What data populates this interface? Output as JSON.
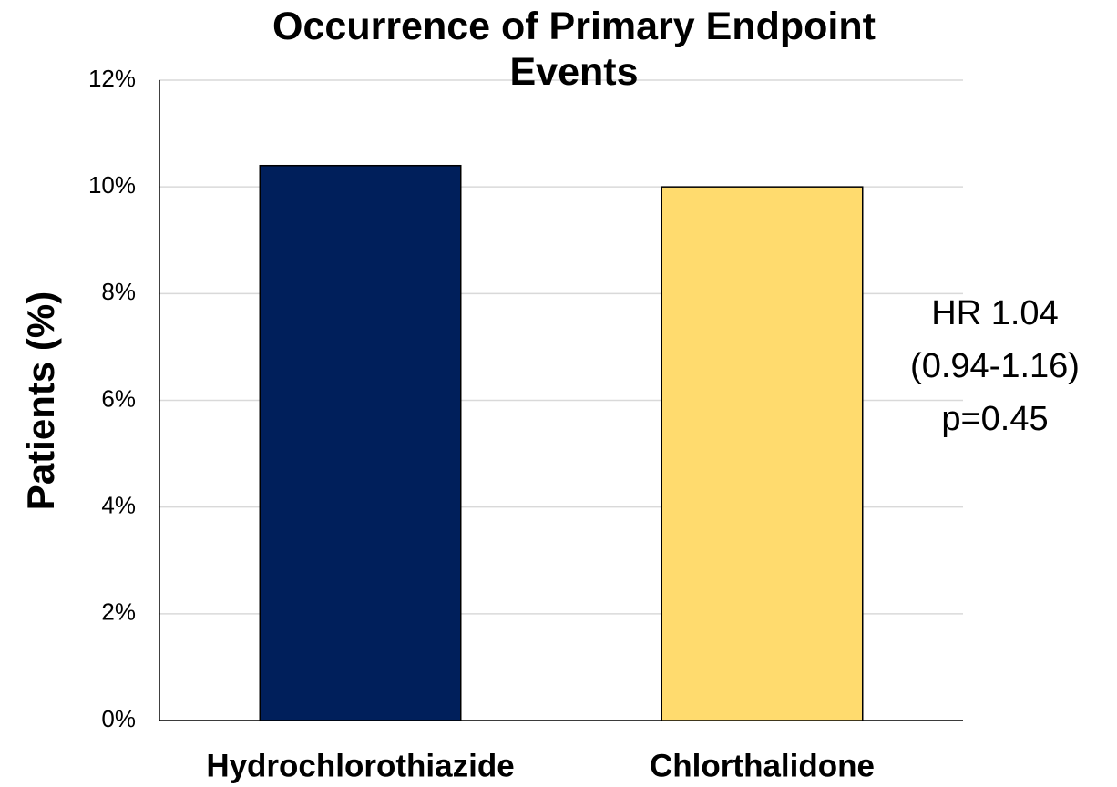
{
  "chart_data": {
    "type": "bar",
    "title": "Occurrence of Primary Endpoint Events",
    "y_label": "Patients (%)",
    "categories": [
      "Hydrochlorothiazide",
      "Chlorthalidone"
    ],
    "values": [
      10.4,
      10.0
    ],
    "colors": [
      "#001f5b",
      "#ffdb6e"
    ],
    "ylim": [
      0,
      12
    ],
    "yticks": [
      {
        "value": 0,
        "label": "0%"
      },
      {
        "value": 2,
        "label": "2%"
      },
      {
        "value": 4,
        "label": "4%"
      },
      {
        "value": 6,
        "label": "6%"
      },
      {
        "value": 8,
        "label": "8%"
      },
      {
        "value": 10,
        "label": "10%"
      },
      {
        "value": 12,
        "label": "12%"
      }
    ],
    "grid": true,
    "annotation": [
      "HR 1.04",
      "(0.94-1.16)",
      "p=0.45"
    ]
  }
}
